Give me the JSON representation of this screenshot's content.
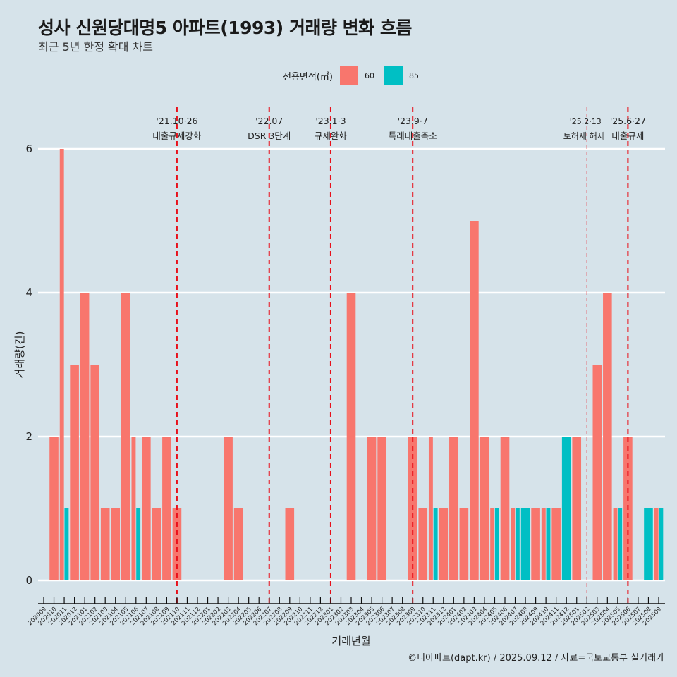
{
  "header": {
    "title": "성사 신원당대명5 아파트(1993) 거래량 변화 흐름",
    "subtitle": "최근 5년 한정 확대 차트"
  },
  "legend": {
    "title": "전용면적(㎡)",
    "items": [
      {
        "label": "60",
        "color": "#f8766d"
      },
      {
        "label": "85",
        "color": "#00bfc4"
      }
    ]
  },
  "footer": {
    "credit": "©디아파트(dapt.kr) / 2025.09.12 / 자료=국토교통부 실거래가"
  },
  "chart_data": {
    "type": "bar",
    "title": "성사 신원당대명5 아파트(1993) 거래량 변화 흐름",
    "subtitle": "최근 5년 한정 확대 차트",
    "xlabel": "거래년월",
    "ylabel": "거래량(건)",
    "ylim": [
      0,
      6
    ],
    "yticks": [
      0,
      2,
      4,
      6
    ],
    "grid": true,
    "legend_position": "top",
    "categories": [
      "202009",
      "202010",
      "202011",
      "202012",
      "202101",
      "202102",
      "202103",
      "202104",
      "202105",
      "202106",
      "202107",
      "202108",
      "202109",
      "202110",
      "202111",
      "202112",
      "202201",
      "202202",
      "202203",
      "202204",
      "202205",
      "202206",
      "202207",
      "202208",
      "202209",
      "202210",
      "202211",
      "202212",
      "202301",
      "202302",
      "202303",
      "202304",
      "202305",
      "202306",
      "202307",
      "202308",
      "202309",
      "202310",
      "202311",
      "202312",
      "202401",
      "202402",
      "202403",
      "202404",
      "202405",
      "202406",
      "202407",
      "202408",
      "202409",
      "202410",
      "202411",
      "202412",
      "202501",
      "202502",
      "202503",
      "202504",
      "202505",
      "202506",
      "202507",
      "202508",
      "202509"
    ],
    "series": [
      {
        "name": "60",
        "color": "#f8766d",
        "values": [
          0,
          2,
          6,
          3,
          4,
          3,
          1,
          1,
          4,
          2,
          2,
          1,
          2,
          1,
          0,
          0,
          0,
          0,
          2,
          1,
          0,
          0,
          0,
          0,
          1,
          0,
          0,
          0,
          0,
          0,
          4,
          0,
          2,
          2,
          0,
          0,
          2,
          1,
          2,
          1,
          2,
          1,
          5,
          2,
          1,
          2,
          1,
          0,
          1,
          1,
          1,
          0,
          2,
          0,
          3,
          4,
          1,
          2,
          0,
          0,
          1
        ]
      },
      {
        "name": "85",
        "color": "#00bfc4",
        "values": [
          0,
          0,
          1,
          0,
          0,
          0,
          0,
          0,
          0,
          1,
          0,
          0,
          0,
          0,
          0,
          0,
          0,
          0,
          0,
          0,
          0,
          0,
          0,
          0,
          0,
          0,
          0,
          0,
          0,
          0,
          0,
          0,
          0,
          0,
          0,
          0,
          0,
          0,
          1,
          0,
          0,
          0,
          0,
          0,
          1,
          0,
          1,
          1,
          0,
          1,
          0,
          2,
          0,
          0,
          0,
          0,
          1,
          0,
          0,
          1,
          1
        ]
      }
    ],
    "annotations": [
      {
        "month": "202110",
        "date": "'21.10·26",
        "label": "대출규제강화",
        "style": "dashed"
      },
      {
        "month": "202207",
        "date": "'22.07",
        "label": "DSR 3단계",
        "style": "dashed"
      },
      {
        "month": "202301",
        "date": "'23.1·3",
        "label": "규제완화",
        "style": "dashed"
      },
      {
        "month": "202309",
        "date": "'23.9·7",
        "label": "특례대출축소",
        "style": "dashed"
      },
      {
        "month": "202502",
        "date": "'25.2·13",
        "label": "토허제 해제",
        "style": "thin-dashed"
      },
      {
        "month": "202506",
        "date": "'25.6·27",
        "label": "대출규제",
        "style": "dashed"
      }
    ]
  }
}
